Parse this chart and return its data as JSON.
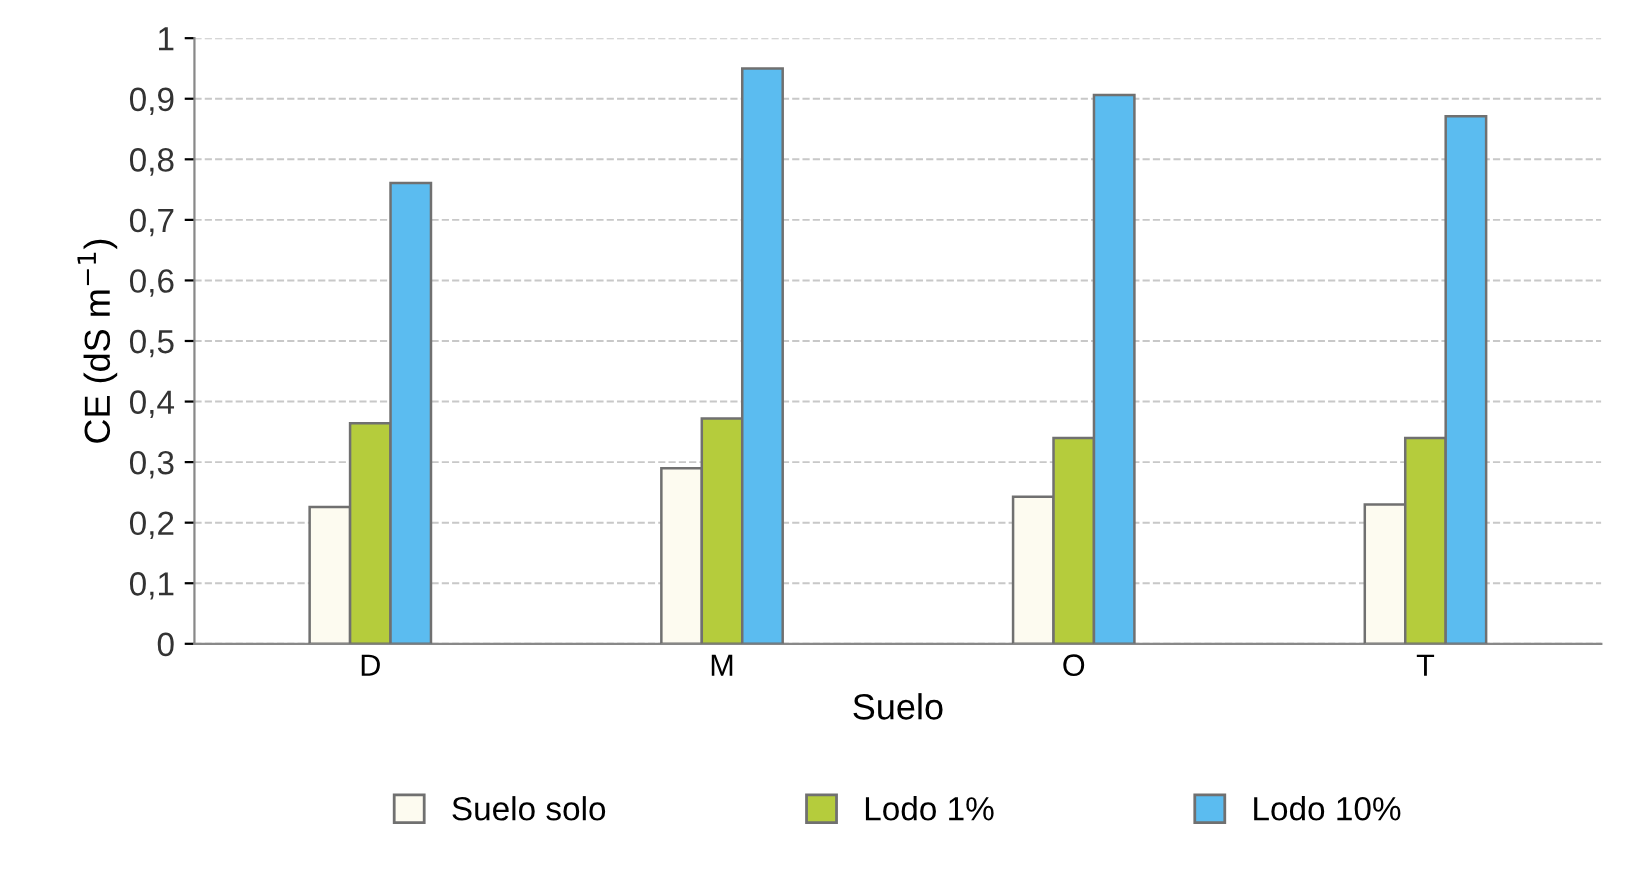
{
  "chart_data": {
    "type": "bar",
    "xlabel": "Suelo",
    "ylabel": "CE (dS m$^{−1}$)",
    "categories": [
      "D",
      "M",
      "O",
      "T"
    ],
    "series": [
      {
        "name": "Suelo solo",
        "color": "#fdfbf0",
        "values": [
          0.226,
          0.29,
          0.243,
          0.23
        ]
      },
      {
        "name": "Lodo 1%",
        "color": "#b5cc3c",
        "values": [
          0.364,
          0.372,
          0.34,
          0.34
        ]
      },
      {
        "name": "Lodo 10%",
        "color": "#5bbcf0",
        "values": [
          0.761,
          0.95,
          0.906,
          0.871
        ]
      }
    ],
    "ylim": [
      0,
      1
    ],
    "yticks": [
      {
        "value": 0,
        "label": "0"
      },
      {
        "value": 0.1,
        "label": "0,1"
      },
      {
        "value": 0.2,
        "label": "0,2"
      },
      {
        "value": 0.3,
        "label": "0,3"
      },
      {
        "value": 0.4,
        "label": "0,4"
      },
      {
        "value": 0.5,
        "label": "0,5"
      },
      {
        "value": 0.6,
        "label": "0,6"
      },
      {
        "value": 0.7,
        "label": "0,7"
      },
      {
        "value": 0.8,
        "label": "0,8"
      },
      {
        "value": 0.9,
        "label": "0,9"
      },
      {
        "value": 1,
        "label": "1"
      }
    ],
    "grid": "y",
    "legend": "bottom"
  }
}
